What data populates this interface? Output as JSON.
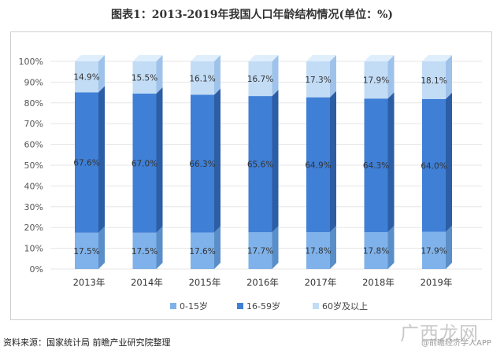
{
  "title": "图表1：2013-2019年我国人口年龄结构情况(单位：%)",
  "source": "资料来源：国家统计局 前瞻产业研究院整理",
  "brand": {
    "mark": "广西龙网",
    "sub": "@前瞻经济学人APP"
  },
  "colors": {
    "low_front": "#7fb2ea",
    "low_side": "#5a8ec8",
    "low_top": "#a8cdf3",
    "mid_front": "#3f7fd6",
    "mid_side": "#2c5ea6",
    "mid_top": "#6ea2e6",
    "high_front": "#c2dcf6",
    "high_side": "#9ec2ea",
    "high_top": "#dfeefb",
    "tick_text": "#555555",
    "grid": "#e6e6e6",
    "label_text": "#333333"
  },
  "chart_data": {
    "type": "bar",
    "stacked": true,
    "three_d": true,
    "categories": [
      "2013年",
      "2014年",
      "2015年",
      "2016年",
      "2017年",
      "2018年",
      "2019年"
    ],
    "series": [
      {
        "name": "0-15岁",
        "values": [
          17.5,
          17.5,
          17.6,
          17.7,
          17.8,
          17.8,
          17.9
        ],
        "labels": [
          "17.5%",
          "17.5%",
          "17.6%",
          "17.7%",
          "17.8%",
          "17.8%",
          "17.9%"
        ]
      },
      {
        "name": "16-59岁",
        "values": [
          67.6,
          67.0,
          66.3,
          65.6,
          64.9,
          64.3,
          64.0
        ],
        "labels": [
          "67.6%",
          "67.0%",
          "66.3%",
          "65.6%",
          "64.9%",
          "64.3%",
          "64.0%"
        ]
      },
      {
        "name": "60岁及以上",
        "values": [
          14.9,
          15.5,
          16.1,
          16.7,
          17.3,
          17.9,
          18.1
        ],
        "labels": [
          "14.9%",
          "15.5%",
          "16.1%",
          "16.7%",
          "17.3%",
          "17.9%",
          "18.1%"
        ]
      }
    ],
    "yticks": [
      "0%",
      "10%",
      "20%",
      "30%",
      "40%",
      "50%",
      "60%",
      "70%",
      "80%",
      "90%",
      "100%"
    ],
    "ylim": [
      0,
      100
    ],
    "grid": true,
    "legend": "bottom-center"
  }
}
